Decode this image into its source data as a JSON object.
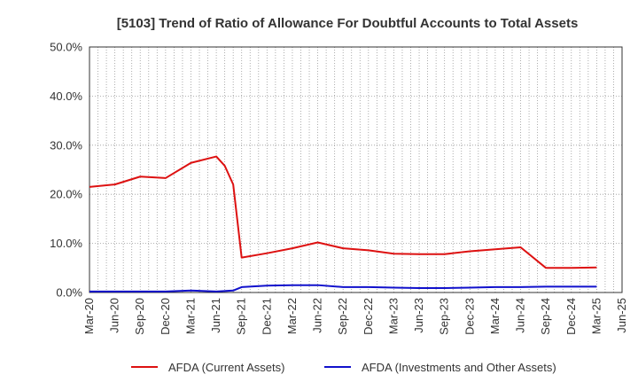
{
  "chart_data": {
    "type": "line",
    "title": "[5103]  Trend of Ratio of Allowance For Doubtful Accounts to Total Assets",
    "xlabel": "",
    "ylabel": "",
    "ylim": [
      0,
      50
    ],
    "y_ticks": [
      "0.0%",
      "10.0%",
      "20.0%",
      "30.0%",
      "40.0%",
      "50.0%"
    ],
    "x_ticks": [
      "Mar-20",
      "Jun-20",
      "Sep-20",
      "Dec-20",
      "Mar-21",
      "Jun-21",
      "Sep-21",
      "Dec-21",
      "Mar-22",
      "Jun-22",
      "Sep-22",
      "Dec-22",
      "Mar-23",
      "Jun-23",
      "Sep-23",
      "Dec-23",
      "Mar-24",
      "Jun-24",
      "Sep-24",
      "Dec-24",
      "Mar-25",
      "Jun-25"
    ],
    "grid": true,
    "legend_position": "bottom",
    "series": [
      {
        "name": "AFDA (Current Assets)",
        "color": "#dd1111",
        "points": [
          [
            "2020-03",
            21.5
          ],
          [
            "2020-06",
            22.0
          ],
          [
            "2020-09",
            23.6
          ],
          [
            "2020-12",
            23.3
          ],
          [
            "2021-03",
            26.4
          ],
          [
            "2021-06",
            27.7
          ],
          [
            "2021-07",
            25.8
          ],
          [
            "2021-08",
            22.0
          ],
          [
            "2021-09",
            7.1
          ],
          [
            "2021-12",
            8.0
          ],
          [
            "2022-03",
            9.0
          ],
          [
            "2022-06",
            10.2
          ],
          [
            "2022-09",
            9.0
          ],
          [
            "2022-12",
            8.6
          ],
          [
            "2023-03",
            7.9
          ],
          [
            "2023-06",
            7.8
          ],
          [
            "2023-09",
            7.8
          ],
          [
            "2023-12",
            8.4
          ],
          [
            "2024-03",
            8.8
          ],
          [
            "2024-06",
            9.2
          ],
          [
            "2024-09",
            5.0
          ],
          [
            "2024-12",
            5.0
          ],
          [
            "2025-03",
            5.1
          ]
        ]
      },
      {
        "name": "AFDA (Investments and Other Assets)",
        "color": "#1111cc",
        "points": [
          [
            "2020-03",
            0.2
          ],
          [
            "2020-06",
            0.2
          ],
          [
            "2020-09",
            0.2
          ],
          [
            "2020-12",
            0.2
          ],
          [
            "2021-03",
            0.4
          ],
          [
            "2021-06",
            0.2
          ],
          [
            "2021-08",
            0.4
          ],
          [
            "2021-09",
            1.1
          ],
          [
            "2021-12",
            1.4
          ],
          [
            "2022-03",
            1.5
          ],
          [
            "2022-06",
            1.5
          ],
          [
            "2022-09",
            1.1
          ],
          [
            "2022-12",
            1.1
          ],
          [
            "2023-03",
            1.0
          ],
          [
            "2023-06",
            0.9
          ],
          [
            "2023-09",
            0.9
          ],
          [
            "2023-12",
            1.0
          ],
          [
            "2024-03",
            1.1
          ],
          [
            "2024-06",
            1.1
          ],
          [
            "2024-09",
            1.2
          ],
          [
            "2024-12",
            1.2
          ],
          [
            "2025-03",
            1.2
          ]
        ]
      }
    ]
  }
}
